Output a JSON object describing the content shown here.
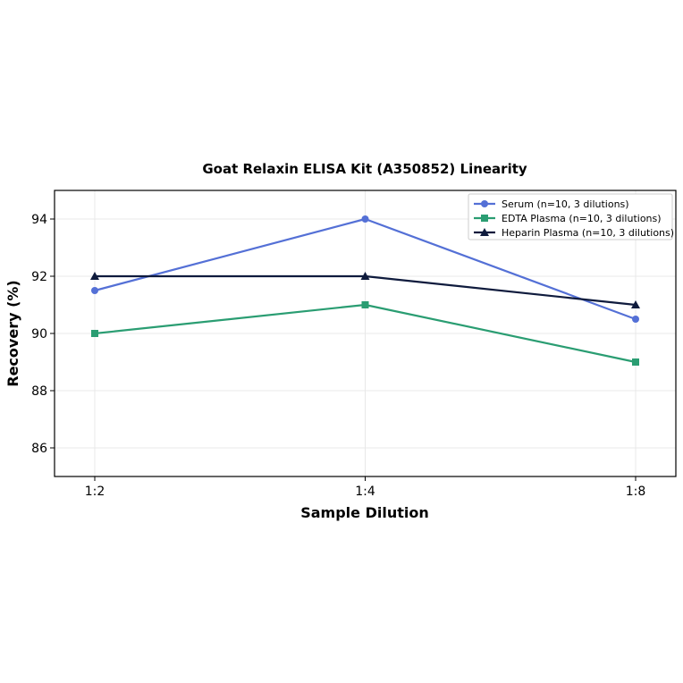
{
  "chart_data": {
    "type": "line",
    "title": "Goat Relaxin ELISA Kit (A350852) Linearity",
    "xlabel": "Sample Dilution",
    "ylabel": "Recovery (%)",
    "categories": [
      "1:2",
      "1:4",
      "1:8"
    ],
    "ylim": [
      85,
      95
    ],
    "yticks": [
      86,
      88,
      90,
      92,
      94
    ],
    "grid": true,
    "legend_position": "top-right",
    "series": [
      {
        "name": "Serum (n=10, 3 dilutions)",
        "values": [
          91.5,
          94.0,
          90.5
        ],
        "color": "#5470d6",
        "marker": "circle"
      },
      {
        "name": "EDTA Plasma (n=10, 3 dilutions)",
        "values": [
          90.0,
          91.0,
          89.0
        ],
        "color": "#2a9d72",
        "marker": "square"
      },
      {
        "name": "Heparin Plasma (n=10, 3 dilutions)",
        "values": [
          92.0,
          92.0,
          91.0
        ],
        "color": "#0f1b3d",
        "marker": "triangle"
      }
    ]
  }
}
